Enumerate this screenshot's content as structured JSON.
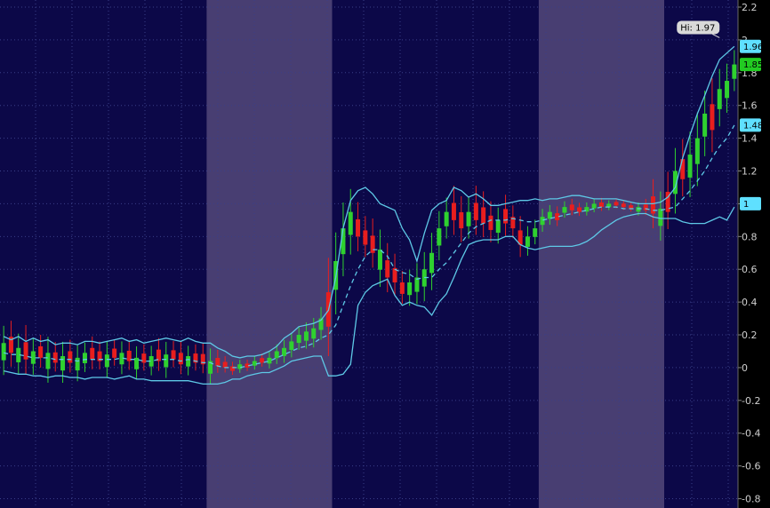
{
  "chart_data": {
    "type": "line",
    "title": "",
    "subtitle": "",
    "xlabel": "",
    "ylabel": "",
    "ylim": [
      -0.9,
      2.2
    ],
    "yticks": [
      2.2,
      2.0,
      1.8,
      1.6,
      1.4,
      1.2,
      1.0,
      0.8,
      0.6,
      0.4,
      0.2,
      0,
      -0.2,
      -0.4,
      -0.6,
      -0.8
    ],
    "ytick_labels": [
      "2.2",
      "2",
      "1.8",
      "1.6",
      "1.4",
      "1.2",
      "1",
      "0.8",
      "0.6",
      "0.4",
      "0.2",
      "0",
      "-0.2",
      "-0.4",
      "-0.6",
      "-0.8"
    ],
    "x_count": 100,
    "grid": true,
    "legend": "none",
    "shaded_ranges": [
      [
        28,
        45
      ],
      [
        73,
        90
      ]
    ],
    "price_tags": [
      {
        "value": 1.96,
        "label": "1.96",
        "color": "#5fe0ff"
      },
      {
        "value": 1.85,
        "label": "1.85",
        "color": "#22cc22"
      },
      {
        "value": 1.48,
        "label": "1.48",
        "color": "#5fe0ff"
      },
      {
        "value": 1.0,
        "label": "1",
        "color": "#5fe0ff"
      }
    ],
    "high_bubble": {
      "x": 97,
      "value": 1.97,
      "label": "Hi: 1.97"
    },
    "series": [
      {
        "style": "line",
        "color": "#5ec8e6",
        "values": [
          0.19,
          0.17,
          0.19,
          0.16,
          0.18,
          0.16,
          0.17,
          0.14,
          0.15,
          0.15,
          0.14,
          0.16,
          0.16,
          0.15,
          0.16,
          0.17,
          0.18,
          0.16,
          0.17,
          0.15,
          0.16,
          0.17,
          0.18,
          0.17,
          0.16,
          0.18,
          0.16,
          0.15,
          0.15,
          0.12,
          0.1,
          0.07,
          0.06,
          0.07,
          0.07,
          0.08,
          0.1,
          0.13,
          0.18,
          0.21,
          0.25,
          0.26,
          0.27,
          0.29,
          0.35,
          0.55,
          0.85,
          1.02,
          1.08,
          1.1,
          1.06,
          1.0,
          0.98,
          0.96,
          0.85,
          0.78,
          0.65,
          0.82,
          0.96,
          1.0,
          1.02,
          1.1,
          1.08,
          1.04,
          1.06,
          1.03,
          0.99,
          0.99,
          1.0,
          1.01,
          1.02,
          1.02,
          1.03,
          1.02,
          1.03,
          1.03,
          1.04,
          1.05,
          1.05,
          1.04,
          1.03,
          1.03,
          1.03,
          1.03,
          1.02,
          1.01,
          1.0,
          1.0,
          1.0,
          1.01,
          1.04,
          1.1,
          1.28,
          1.42,
          1.55,
          1.66,
          1.78,
          1.88,
          1.92,
          1.96
        ]
      },
      {
        "style": "line",
        "color": "#5ec8e6",
        "values": [
          -0.02,
          -0.03,
          -0.04,
          -0.04,
          -0.05,
          -0.05,
          -0.06,
          -0.05,
          -0.05,
          -0.06,
          -0.06,
          -0.07,
          -0.06,
          -0.06,
          -0.06,
          -0.07,
          -0.06,
          -0.05,
          -0.07,
          -0.07,
          -0.08,
          -0.08,
          -0.08,
          -0.08,
          -0.08,
          -0.08,
          -0.09,
          -0.1,
          -0.1,
          -0.1,
          -0.09,
          -0.07,
          -0.07,
          -0.05,
          -0.04,
          -0.03,
          -0.03,
          -0.01,
          0.01,
          0.04,
          0.05,
          0.06,
          0.07,
          0.07,
          -0.05,
          -0.05,
          -0.04,
          0.02,
          0.38,
          0.46,
          0.5,
          0.52,
          0.54,
          0.44,
          0.38,
          0.4,
          0.38,
          0.37,
          0.32,
          0.4,
          0.45,
          0.55,
          0.66,
          0.75,
          0.77,
          0.78,
          0.78,
          0.78,
          0.8,
          0.8,
          0.75,
          0.73,
          0.72,
          0.73,
          0.74,
          0.74,
          0.74,
          0.74,
          0.75,
          0.77,
          0.8,
          0.84,
          0.87,
          0.9,
          0.92,
          0.93,
          0.94,
          0.94,
          0.92,
          0.91,
          0.91,
          0.91,
          0.89,
          0.88,
          0.88,
          0.88,
          0.9,
          0.92,
          0.9,
          0.98
        ]
      },
      {
        "style": "dashed",
        "color": "#5ec8e6",
        "values": [
          0.09,
          0.08,
          0.08,
          0.07,
          0.06,
          0.06,
          0.06,
          0.05,
          0.05,
          0.05,
          0.04,
          0.05,
          0.05,
          0.05,
          0.05,
          0.05,
          0.06,
          0.05,
          0.05,
          0.04,
          0.04,
          0.05,
          0.05,
          0.05,
          0.04,
          0.05,
          0.04,
          0.03,
          0.03,
          0.01,
          0.0,
          0.0,
          0.0,
          0.01,
          0.02,
          0.03,
          0.04,
          0.06,
          0.08,
          0.1,
          0.12,
          0.13,
          0.15,
          0.18,
          0.2,
          0.26,
          0.38,
          0.5,
          0.6,
          0.68,
          0.72,
          0.72,
          0.68,
          0.6,
          0.58,
          0.57,
          0.54,
          0.55,
          0.55,
          0.6,
          0.64,
          0.7,
          0.76,
          0.82,
          0.86,
          0.88,
          0.9,
          0.9,
          0.9,
          0.91,
          0.9,
          0.89,
          0.89,
          0.9,
          0.91,
          0.92,
          0.93,
          0.94,
          0.95,
          0.96,
          0.97,
          0.98,
          0.98,
          0.98,
          0.97,
          0.97,
          0.97,
          0.97,
          0.96,
          0.96,
          0.97,
          0.98,
          1.03,
          1.08,
          1.14,
          1.2,
          1.28,
          1.35,
          1.4,
          1.48
        ]
      },
      {
        "style": "candle",
        "close": [
          0.15,
          0.09,
          0.12,
          0.05,
          0.1,
          0.06,
          0.09,
          0.03,
          0.07,
          0.03,
          0.06,
          0.09,
          0.05,
          0.04,
          0.08,
          0.06,
          0.09,
          0.04,
          0.06,
          0.03,
          0.07,
          0.04,
          0.08,
          0.05,
          0.02,
          0.07,
          0.03,
          0.02,
          0.04,
          0.01,
          0.0,
          -0.02,
          0.02,
          0.0,
          0.04,
          0.03,
          0.06,
          0.1,
          0.12,
          0.16,
          0.2,
          0.22,
          0.24,
          0.3,
          0.25,
          0.65,
          0.85,
          0.95,
          0.8,
          0.75,
          0.7,
          0.72,
          0.55,
          0.52,
          0.45,
          0.52,
          0.55,
          0.6,
          0.7,
          0.85,
          0.95,
          0.9,
          0.85,
          0.95,
          0.9,
          0.88,
          0.84,
          0.9,
          0.88,
          0.85,
          0.75,
          0.8,
          0.85,
          0.92,
          0.95,
          0.9,
          0.98,
          0.96,
          0.95,
          0.98,
          1.0,
          0.98,
          1.0,
          0.99,
          0.98,
          0.97,
          0.98,
          0.96,
          0.94,
          0.97,
          0.95,
          1.2,
          1.15,
          1.3,
          1.4,
          1.55,
          1.45,
          1.7,
          1.75,
          1.85
        ],
        "up": [
          1,
          0,
          1,
          0,
          1,
          0,
          1,
          0,
          1,
          0,
          1,
          1,
          0,
          0,
          1,
          0,
          1,
          0,
          1,
          0,
          1,
          0,
          1,
          0,
          0,
          1,
          0,
          0,
          1,
          0,
          0,
          0,
          1,
          0,
          1,
          0,
          1,
          1,
          1,
          1,
          1,
          1,
          1,
          1,
          0,
          1,
          1,
          1,
          0,
          0,
          0,
          1,
          0,
          0,
          0,
          1,
          1,
          1,
          1,
          1,
          1,
          0,
          0,
          1,
          0,
          0,
          0,
          1,
          0,
          0,
          0,
          1,
          1,
          1,
          1,
          0,
          1,
          0,
          0,
          1,
          1,
          0,
          1,
          0,
          0,
          0,
          1,
          0,
          0,
          1,
          0,
          1,
          0,
          1,
          1,
          1,
          0,
          1,
          1,
          1
        ],
        "range": [
          0.3,
          0.28,
          0.25,
          0.3,
          0.22,
          0.2,
          0.28,
          0.18,
          0.25,
          0.2,
          0.22,
          0.18,
          0.2,
          0.17,
          0.22,
          0.16,
          0.2,
          0.18,
          0.2,
          0.16,
          0.18,
          0.2,
          0.22,
          0.16,
          0.2,
          0.18,
          0.16,
          0.18,
          0.22,
          0.14,
          0.1,
          0.08,
          0.08,
          0.07,
          0.08,
          0.08,
          0.1,
          0.12,
          0.14,
          0.15,
          0.14,
          0.16,
          0.18,
          0.2,
          0.6,
          0.5,
          0.45,
          0.4,
          0.3,
          0.25,
          0.3,
          0.35,
          0.3,
          0.25,
          0.2,
          0.22,
          0.25,
          0.3,
          0.35,
          0.3,
          0.25,
          0.3,
          0.28,
          0.25,
          0.3,
          0.28,
          0.25,
          0.22,
          0.25,
          0.2,
          0.25,
          0.18,
          0.15,
          0.14,
          0.12,
          0.12,
          0.1,
          0.1,
          0.08,
          0.08,
          0.08,
          0.08,
          0.06,
          0.06,
          0.06,
          0.06,
          0.08,
          0.1,
          0.3,
          0.3,
          0.35,
          0.4,
          0.35,
          0.4,
          0.45,
          0.4,
          0.45,
          0.35,
          0.3,
          0.25
        ]
      }
    ]
  }
}
